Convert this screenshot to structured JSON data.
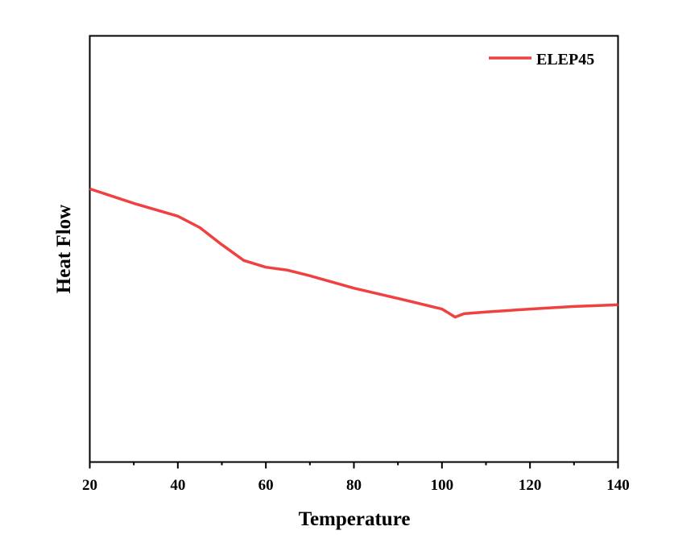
{
  "chart_data": {
    "type": "line",
    "title": "",
    "xlabel": "Temperature",
    "ylabel": "Heat Flow",
    "xlim": [
      20,
      140
    ],
    "ylim": [
      0,
      100
    ],
    "xticks": [
      20,
      40,
      60,
      80,
      100,
      120,
      140
    ],
    "grid": false,
    "legend_position": "top-right",
    "series": [
      {
        "name": "ELEP45",
        "color": "#f04040",
        "x": [
          20,
          30,
          40,
          45,
          50,
          55,
          60,
          65,
          70,
          80,
          90,
          100,
          101,
          103,
          105,
          110,
          120,
          130,
          140
        ],
        "y": [
          64.1,
          60.7,
          57.7,
          55.0,
          51.0,
          47.3,
          45.7,
          45.0,
          43.7,
          40.8,
          38.4,
          35.9,
          35.3,
          34.0,
          34.8,
          35.2,
          35.9,
          36.5,
          36.9
        ]
      }
    ]
  }
}
